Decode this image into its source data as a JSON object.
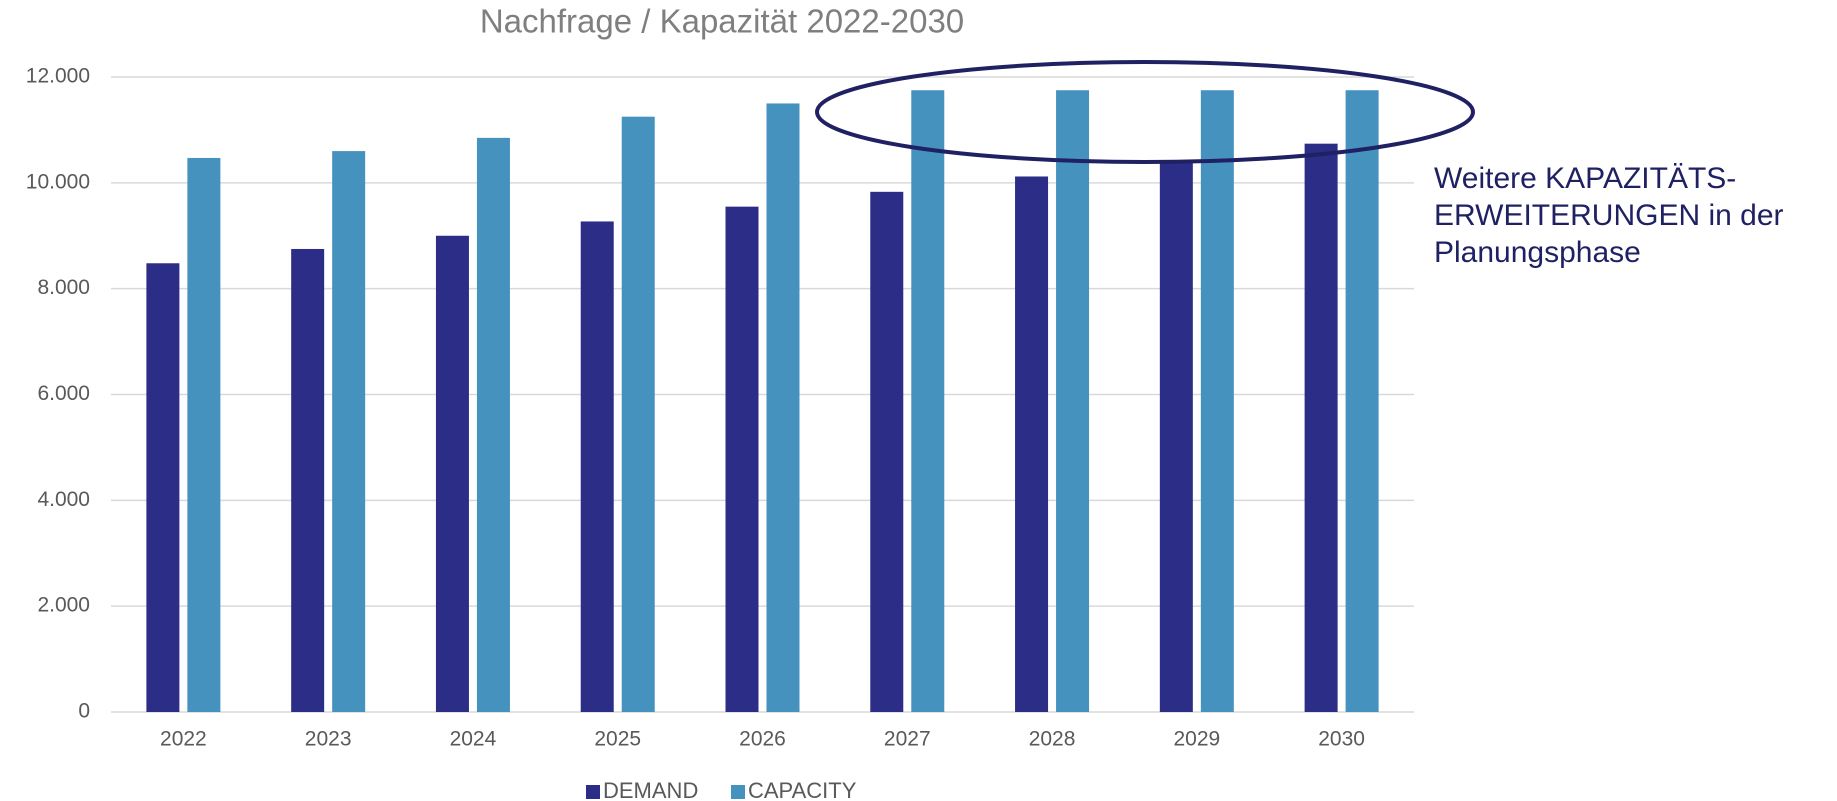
{
  "chart_data": {
    "type": "bar",
    "title": "Nachfrage / Kapazität 2022-2030",
    "categories": [
      "2022",
      "2023",
      "2024",
      "2025",
      "2026",
      "2027",
      "2028",
      "2029",
      "2030"
    ],
    "series": [
      {
        "name": "DEMAND",
        "color": "#2b2d86",
        "values": [
          8480,
          8750,
          9000,
          9270,
          9550,
          9830,
          10120,
          10430,
          10740
        ]
      },
      {
        "name": "CAPACITY",
        "color": "#4692bf",
        "values": [
          10470,
          10600,
          10850,
          11250,
          11500,
          11750,
          11750,
          11750,
          11750
        ]
      }
    ],
    "ylim": [
      0,
      12000
    ],
    "yticks": [
      0,
      {
        "value": 2000,
        "label": "2.000"
      },
      {
        "value": 4000,
        "label": "4.000"
      },
      {
        "value": 6000,
        "label": "6.000"
      },
      {
        "value": 8000,
        "label": "8.000"
      },
      {
        "value": 10000,
        "label": "10.000"
      },
      {
        "value": 12000,
        "label": "12.000"
      }
    ],
    "grid": true,
    "legend": "bottom",
    "annotation": [
      "Weitere KAPAZITÄTS-",
      "ERWEITERUNGEN in der",
      "Planungsphase"
    ]
  }
}
